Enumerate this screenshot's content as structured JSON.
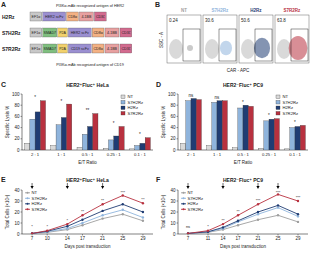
{
  "panel_a": {
    "label": "A",
    "captions": [
      "PI3Kα-mAb recognized antigen of HER2",
      "PI3Kα-mAb recognized antigen of CD19"
    ],
    "rows": [
      {
        "name": "H2Rz",
        "boxes": [
          "EF1α",
          "HER2 scFv",
          "CD8α",
          "4-1BB",
          "CD3ζ"
        ]
      },
      {
        "name": "S7H2Rz",
        "boxes": [
          "EF1α",
          "SMAD7",
          "P2A",
          "HER2 scFv",
          "CD8α",
          "4-1BB",
          "CD3ζ"
        ]
      },
      {
        "name": "S7R2Rz",
        "boxes": [
          "EF1α",
          "SMAD7",
          "P2A",
          "CD19 scFv",
          "CD8α",
          "4-1BB",
          "CD3ζ"
        ]
      }
    ]
  },
  "panel_b": {
    "label": "B",
    "y_label": "SSC - A",
    "x_label": "CAR - APC",
    "plots": [
      {
        "name": "NT",
        "value": 0.24,
        "color": "#9e9e9e"
      },
      {
        "name": "S7H2Rz",
        "value": 30.6,
        "color": "#8fb4dc"
      },
      {
        "name": "H2Rz",
        "value": 50.6,
        "color": "#1f3c73"
      },
      {
        "name": "S7R2Rz",
        "value": 63.8,
        "color": "#b8313f"
      }
    ]
  },
  "chart_data": [
    {
      "label": "C",
      "type": "bar",
      "title": "HER2⁺Fluc⁺ HeLa",
      "x_label": "E/T Ratio",
      "y_label": "Specific Lysis %",
      "categories": [
        "2 : 1",
        "1 : 1",
        "0.5 : 1",
        "0.25 : 1",
        "0.1 : 1"
      ],
      "ylim": [
        0,
        100
      ],
      "yticks": [
        0,
        20,
        40,
        60,
        80,
        100
      ],
      "grid": false,
      "legend": "upper right",
      "annotations": [
        "*",
        "*",
        "**",
        "*",
        "*"
      ],
      "series": [
        {
          "name": "NT",
          "color": "#d9d9d9",
          "values": [
            12,
            8,
            5,
            3,
            2
          ]
        },
        {
          "name": "S7H2Rz",
          "color": "#8fb4dc",
          "values": [
            55,
            45,
            28,
            18,
            8
          ]
        },
        {
          "name": "H2Rz",
          "color": "#1f3c73",
          "values": [
            68,
            58,
            42,
            25,
            12
          ]
        },
        {
          "name": "S7R2Rz",
          "color": "#b8313f",
          "values": [
            88,
            82,
            65,
            42,
            22
          ]
        }
      ]
    },
    {
      "label": "D",
      "type": "bar",
      "title": "HER2⁻Fluc⁺ PC9",
      "x_label": "E/T Ratio",
      "y_label": "Specific Lysis %",
      "categories": [
        "2 : 1",
        "1 : 1",
        "0.5 : 1",
        "0.25 : 1",
        "0.1 : 1"
      ],
      "ylim": [
        0,
        100
      ],
      "yticks": [
        0,
        20,
        40,
        60,
        80,
        100
      ],
      "grid": false,
      "legend": "upper right",
      "annotations": [
        "ns",
        "ns",
        "*",
        "*",
        "*"
      ],
      "series": [
        {
          "name": "NT",
          "color": "#d9d9d9",
          "values": [
            12,
            8,
            4,
            3,
            2
          ]
        },
        {
          "name": "S7H2Rz",
          "color": "#8fb4dc",
          "values": [
            88,
            85,
            75,
            52,
            40
          ]
        },
        {
          "name": "H2Rz",
          "color": "#1f3c73",
          "values": [
            92,
            88,
            80,
            55,
            42
          ]
        },
        {
          "name": "S7R2Rz",
          "color": "#b8313f",
          "values": [
            90,
            88,
            78,
            56,
            44
          ]
        }
      ]
    },
    {
      "label": "E",
      "type": "line",
      "title": "HER2⁺Fluc⁺ HeLa",
      "x_label": "Days post transduction",
      "y_label": "Total Cells (×10⁶)",
      "x": [
        7,
        10,
        14,
        17,
        21,
        25,
        29
      ],
      "xlim": [
        5,
        31
      ],
      "xticks": [
        7,
        10,
        14,
        17,
        21,
        25,
        29
      ],
      "ylim": [
        0,
        40
      ],
      "yticks": [
        0,
        10,
        20,
        30,
        40
      ],
      "grid": false,
      "legend": "upper left",
      "stimulations": [
        7,
        14,
        21
      ],
      "annotations": [
        "*",
        "*",
        "*",
        "**",
        "**",
        "***",
        "**"
      ],
      "marker": "circle",
      "series": [
        {
          "name": "NT",
          "color": "#9e9e9e",
          "values": [
            0.5,
            1.5,
            4,
            8,
            14,
            18,
            12
          ]
        },
        {
          "name": "S7H2Rz",
          "color": "#8fb4dc",
          "values": [
            0.5,
            2,
            5,
            10,
            17,
            22,
            15
          ]
        },
        {
          "name": "H2Rz",
          "color": "#1f3c73",
          "values": [
            0.5,
            2.5,
            7,
            13,
            21,
            27,
            20
          ]
        },
        {
          "name": "S7R2Rz",
          "color": "#b8313f",
          "values": [
            0.5,
            3,
            9,
            17,
            27,
            35,
            28
          ]
        }
      ]
    },
    {
      "label": "F",
      "type": "line",
      "title": "HER2⁻Fluc⁺ PC9",
      "x_label": "Days post transduction",
      "y_label": "Total Cells (×10⁶)",
      "x": [
        7,
        11,
        14,
        17,
        21,
        25,
        29
      ],
      "xlim": [
        5,
        31
      ],
      "xticks": [
        7,
        11,
        14,
        17,
        21,
        25,
        29
      ],
      "ylim": [
        0,
        40
      ],
      "yticks": [
        0,
        10,
        20,
        30,
        40
      ],
      "grid": false,
      "legend": "upper left",
      "stimulations": [
        7,
        14,
        21,
        25
      ],
      "annotations": [
        "ns",
        "*",
        "**",
        "**",
        "***",
        "***",
        "***"
      ],
      "marker": "circle",
      "series": [
        {
          "name": "NT",
          "color": "#9e9e9e",
          "values": [
            0.5,
            1.5,
            4,
            8,
            13,
            17,
            11
          ]
        },
        {
          "name": "S7H2Rz",
          "color": "#8fb4dc",
          "values": [
            0.5,
            2,
            5,
            11,
            18,
            24,
            16
          ]
        },
        {
          "name": "H2Rz",
          "color": "#1f3c73",
          "values": [
            0.5,
            2,
            6,
            12,
            20,
            26,
            18
          ]
        },
        {
          "name": "S7R2Rz",
          "color": "#b8313f",
          "values": [
            0.5,
            3,
            9,
            17,
            27,
            36,
            30
          ]
        }
      ]
    }
  ]
}
